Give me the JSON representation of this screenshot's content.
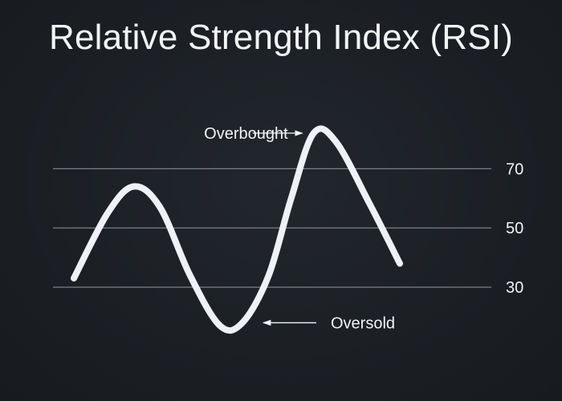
{
  "chart_data": {
    "type": "line",
    "title": "Relative Strength Index (RSI)",
    "xlabel": "",
    "ylabel": "",
    "ylim": [
      10,
      95
    ],
    "yticks": [
      70,
      50,
      30
    ],
    "reference_lines": [
      70,
      50,
      30
    ],
    "grid": false,
    "series": [
      {
        "points": [
          [
            0,
            33
          ],
          [
            9,
            55
          ],
          [
            16,
            64
          ],
          [
            23,
            57
          ],
          [
            31,
            34
          ],
          [
            39,
            17
          ],
          [
            45,
            18
          ],
          [
            52,
            34
          ],
          [
            58,
            60
          ],
          [
            64,
            82
          ],
          [
            70,
            79
          ],
          [
            79,
            58
          ],
          [
            87,
            38
          ]
        ]
      }
    ],
    "annotations": [
      {
        "text": "Overbought",
        "target": [
          64,
          82
        ]
      },
      {
        "text": "Oversold",
        "target": [
          45,
          18
        ]
      }
    ],
    "colors": {
      "background": "#1b1f24",
      "line": "#eef2f7",
      "reference": "#8a9097",
      "text": "#f2f4f6"
    }
  }
}
